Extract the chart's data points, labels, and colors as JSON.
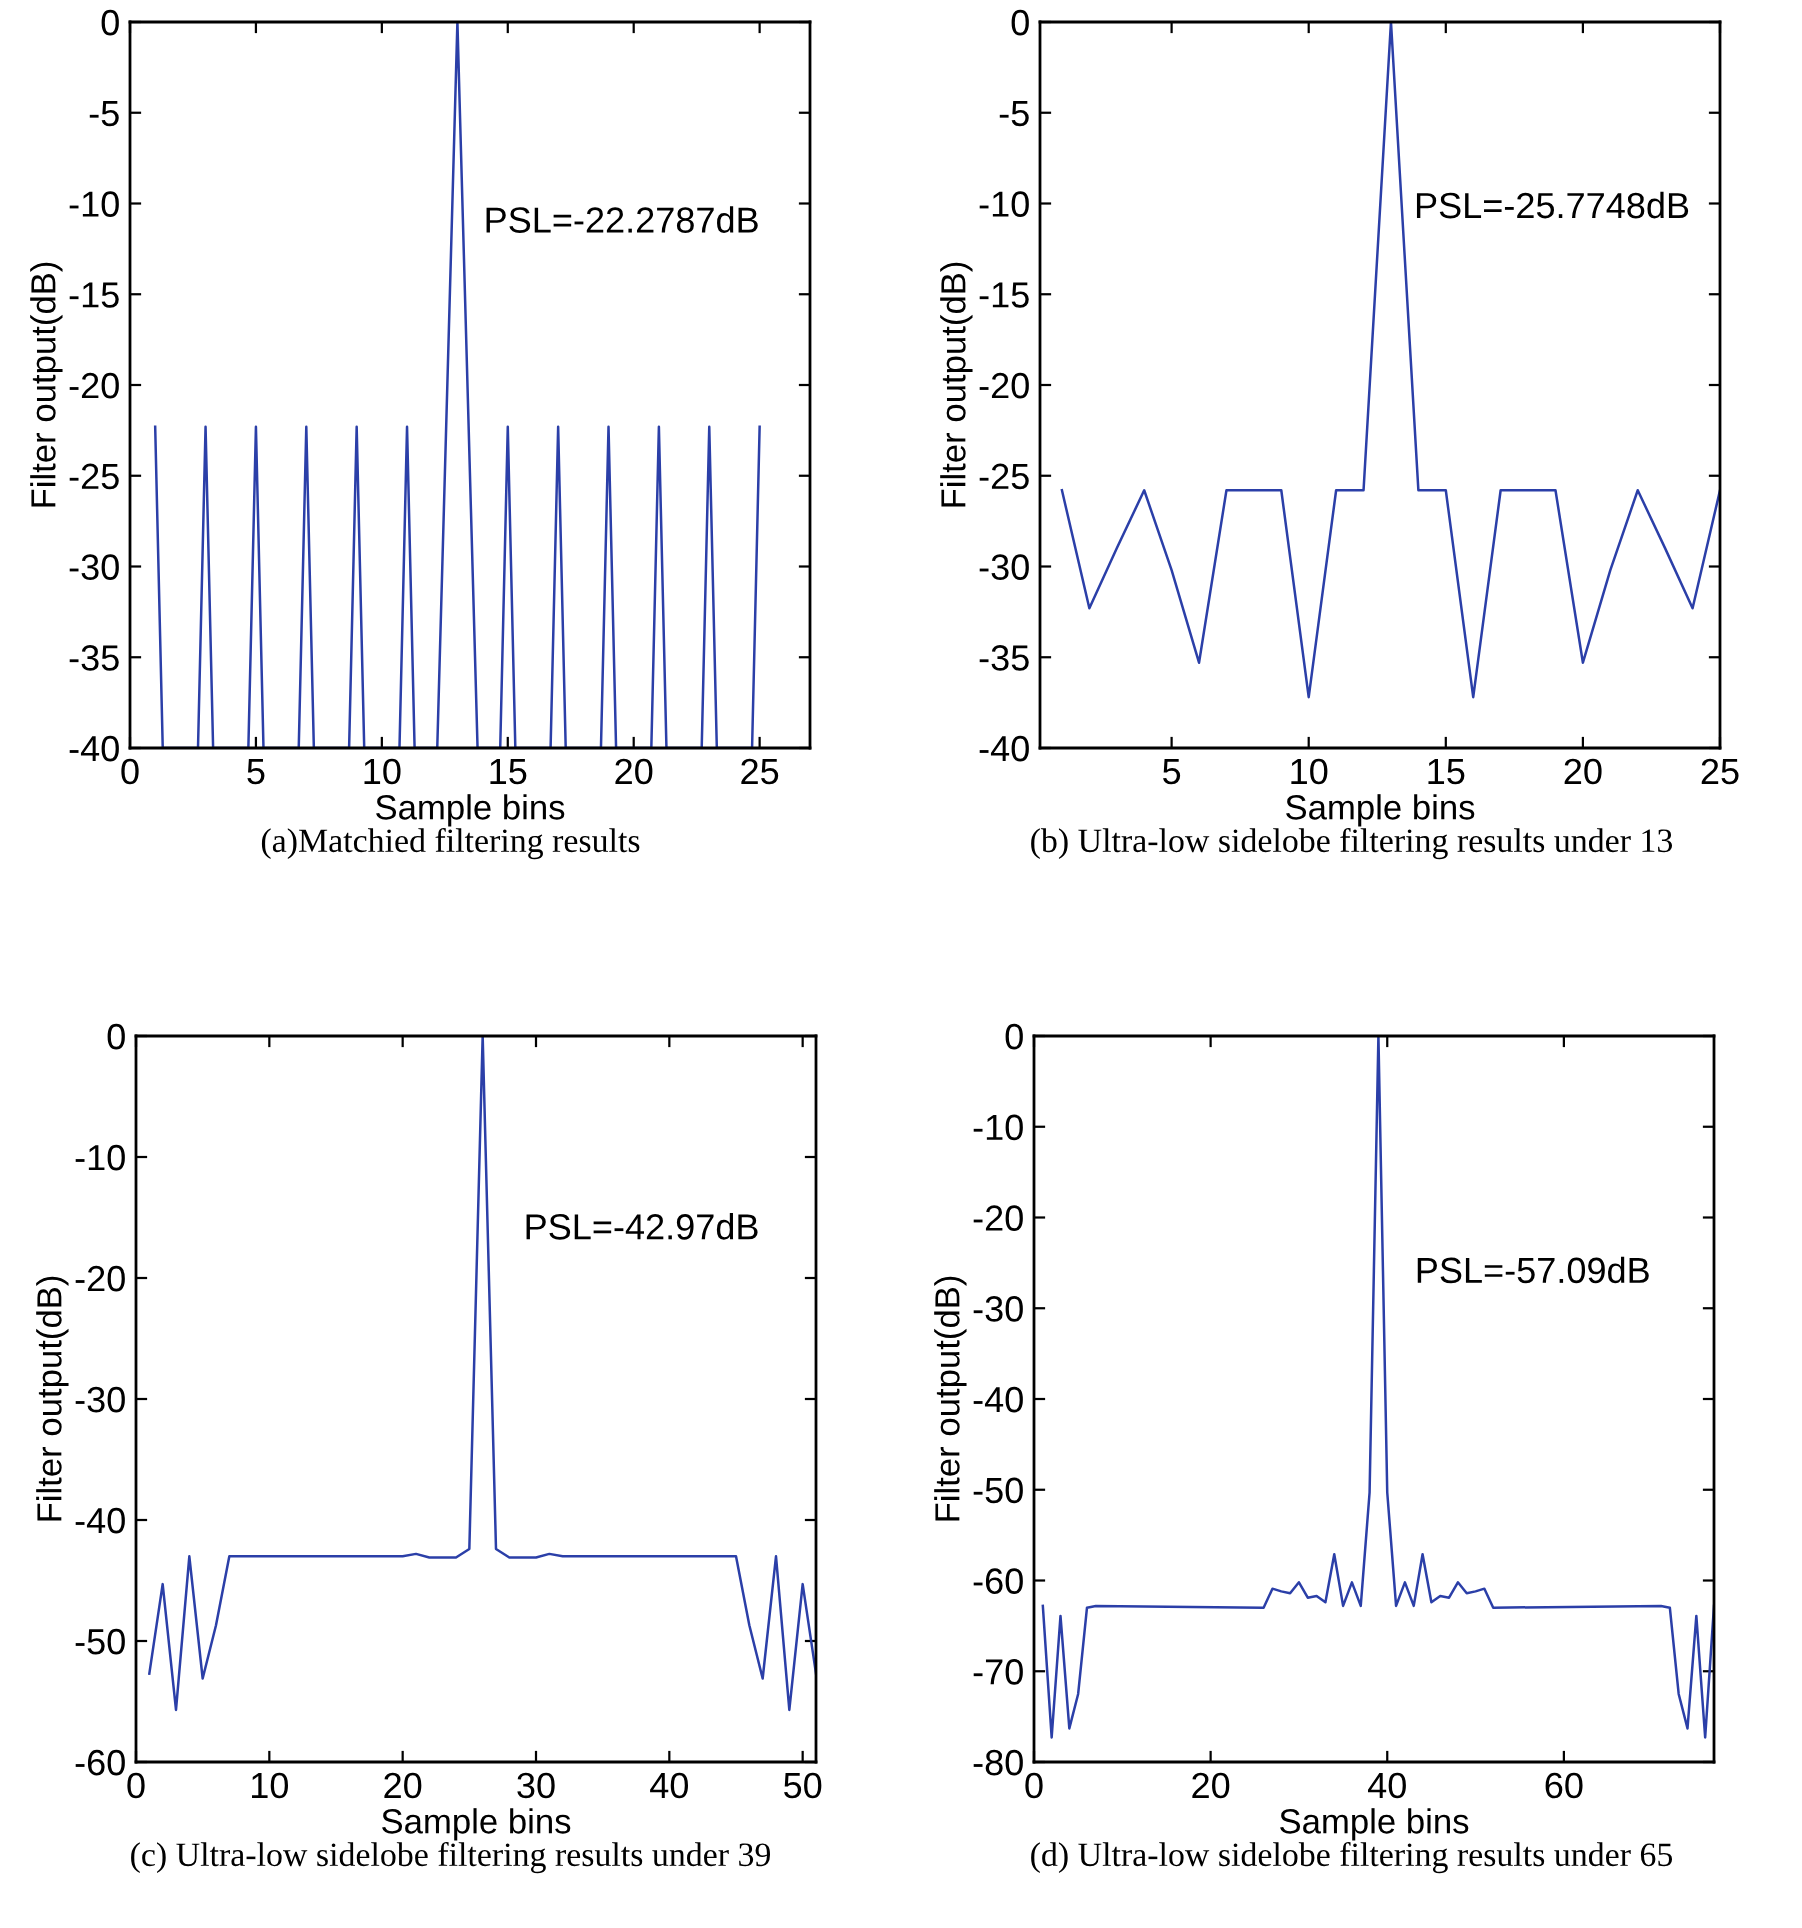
{
  "chart_data": [
    {
      "type": "line",
      "title": "(a)Matchied filtering results",
      "xlabel": "Sample bins",
      "ylabel": "Filter output(dB)",
      "annotations": [
        "PSL=-22.2787dB"
      ],
      "xlim": [
        0,
        27
      ],
      "ylim": [
        -40,
        0
      ],
      "xticks": [
        0,
        5,
        10,
        15,
        20,
        25
      ],
      "yticks": [
        -40,
        -35,
        -30,
        -25,
        -20,
        -15,
        -10,
        -5,
        0
      ],
      "grid": false,
      "legend": false,
      "series": [
        {
          "color": "#2b3fa8",
          "x": [
            1,
            1.3,
            2.7,
            3,
            3.3,
            4.7,
            5,
            5.3,
            6.7,
            7,
            7.3,
            8.7,
            9,
            9.3,
            10.7,
            11,
            11.3,
            12.2,
            13,
            13.8,
            14.7,
            15,
            15.3,
            16.7,
            17,
            17.3,
            18.7,
            19,
            19.3,
            20.7,
            21,
            21.3,
            22.7,
            23,
            23.3,
            24.7,
            25
          ],
          "values": [
            -22.3,
            -40,
            -40,
            -22.3,
            -40,
            -40,
            -22.3,
            -40,
            -40,
            -22.3,
            -40,
            -40,
            -22.3,
            -40,
            -40,
            -22.3,
            -40,
            -40,
            0,
            -40,
            -40,
            -22.3,
            -40,
            -40,
            -22.3,
            -40,
            -40,
            -22.3,
            -40,
            -40,
            -22.3,
            -40,
            -40,
            -22.3,
            -40,
            -40,
            -22.3
          ]
        }
      ]
    },
    {
      "type": "line",
      "title": "(b) Ultra-low sidelobe filtering results under 13",
      "xlabel": "Sample bins",
      "ylabel": "Filter output(dB)",
      "annotations": [
        "PSL=-25.7748dB"
      ],
      "xlim": [
        0.2,
        25
      ],
      "ylim": [
        -40,
        0
      ],
      "xticks": [
        5,
        10,
        15,
        20,
        25
      ],
      "yticks": [
        -40,
        -35,
        -30,
        -25,
        -20,
        -15,
        -10,
        -5,
        0
      ],
      "grid": false,
      "legend": false,
      "series": [
        {
          "color": "#2b3fa8",
          "x": [
            1,
            2,
            3,
            4,
            5,
            6,
            7,
            8,
            9,
            10,
            11,
            12,
            13,
            14,
            15,
            16,
            17,
            18,
            19,
            20,
            21,
            22,
            23,
            24,
            25
          ],
          "values": [
            -25.8,
            -32.3,
            -29.0,
            -25.8,
            -30.2,
            -35.3,
            -25.8,
            -25.8,
            -25.8,
            -37.2,
            -25.8,
            -25.8,
            0,
            -25.8,
            -25.8,
            -37.2,
            -25.8,
            -25.8,
            -25.8,
            -35.3,
            -30.2,
            -25.8,
            -29.0,
            -32.3,
            -25.8
          ]
        }
      ]
    },
    {
      "type": "line",
      "title": "(c) Ultra-low sidelobe filtering results under 39",
      "xlabel": "Sample bins",
      "ylabel": "Filter output(dB)",
      "annotations": [
        "PSL=-42.97dB"
      ],
      "xlim": [
        0,
        51
      ],
      "ylim": [
        -60,
        0
      ],
      "xticks": [
        0,
        10,
        20,
        30,
        40,
        50
      ],
      "yticks": [
        -60,
        -50,
        -40,
        -30,
        -20,
        -10,
        0
      ],
      "grid": false,
      "legend": false,
      "series": [
        {
          "color": "#2b3fa8",
          "x": [
            1,
            2,
            3,
            4,
            5,
            6,
            7,
            8,
            9,
            10,
            11,
            12,
            13,
            14,
            15,
            16,
            17,
            18,
            19,
            20,
            21,
            22,
            23,
            24,
            25,
            26,
            27,
            28,
            29,
            30,
            31,
            32,
            33,
            34,
            35,
            36,
            37,
            38,
            39,
            40,
            41,
            42,
            43,
            44,
            45,
            46,
            47,
            48,
            49,
            50,
            51
          ],
          "values": [
            -52.7,
            -45.3,
            -55.7,
            -43.0,
            -53.1,
            -48.7,
            -43.0,
            -43.0,
            -43.0,
            -43.0,
            -43.0,
            -43.0,
            -43.0,
            -43.0,
            -43.0,
            -43.0,
            -43.0,
            -43.0,
            -43.0,
            -43.0,
            -42.8,
            -43.1,
            -43.1,
            -43.1,
            -42.4,
            0,
            -42.4,
            -43.1,
            -43.1,
            -43.1,
            -42.8,
            -43.0,
            -43.0,
            -43.0,
            -43.0,
            -43.0,
            -43.0,
            -43.0,
            -43.0,
            -43.0,
            -43.0,
            -43.0,
            -43.0,
            -43.0,
            -43.0,
            -48.7,
            -53.1,
            -43.0,
            -55.7,
            -45.3,
            -52.7
          ]
        }
      ]
    },
    {
      "type": "line",
      "title": "(d) Ultra-low sidelobe filtering results under 65",
      "xlabel": "Sample bins",
      "ylabel": "Filter output(dB)",
      "annotations": [
        "PSL=-57.09dB"
      ],
      "xlim": [
        0,
        77
      ],
      "ylim": [
        -80,
        0
      ],
      "xticks": [
        0,
        20,
        40,
        60
      ],
      "yticks": [
        -80,
        -70,
        -60,
        -50,
        -40,
        -30,
        -20,
        -10,
        0
      ],
      "grid": false,
      "legend": false,
      "series": [
        {
          "color": "#2b3fa8",
          "x": [
            1,
            2,
            3,
            4,
            5,
            6,
            7,
            26,
            27,
            28,
            29,
            30,
            31,
            32,
            33,
            34,
            35,
            36,
            37,
            38,
            39,
            40,
            41,
            42,
            43,
            44,
            45,
            46,
            47,
            48,
            49,
            50,
            51,
            52,
            71,
            72,
            73,
            74,
            75,
            76,
            77
          ],
          "values": [
            -62.8,
            -77.3,
            -63.9,
            -76.3,
            -72.5,
            -63.0,
            -62.8,
            -63.0,
            -60.9,
            -61.2,
            -61.4,
            -60.2,
            -61.9,
            -61.7,
            -62.4,
            -57.1,
            -62.8,
            -60.2,
            -62.8,
            -50.3,
            0,
            -50.3,
            -62.8,
            -60.2,
            -62.8,
            -57.1,
            -62.4,
            -61.7,
            -61.9,
            -60.2,
            -61.4,
            -61.2,
            -60.9,
            -63.0,
            -62.8,
            -63.0,
            -72.5,
            -76.3,
            -63.9,
            -77.3,
            -62.8
          ]
        }
      ]
    }
  ]
}
